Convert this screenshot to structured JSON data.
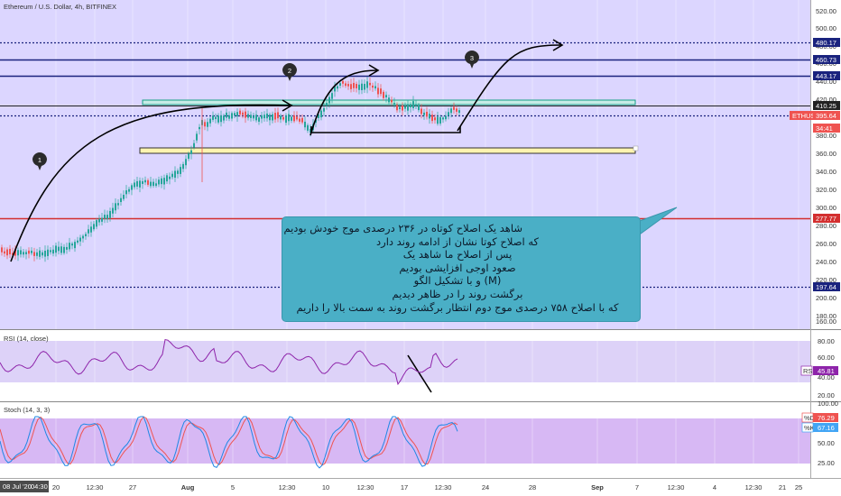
{
  "header": {
    "symbol_title": "Ethereum / U.S. Dollar, 4h, BITFINEX"
  },
  "price_axis": {
    "ticks": [
      "520.00",
      "500.00",
      "480.00",
      "460.00",
      "440.00",
      "420.00",
      "400.00",
      "380.00",
      "360.00",
      "340.00",
      "320.00",
      "300.00",
      "280.00",
      "260.00",
      "240.00",
      "220.00",
      "200.00",
      "180.00",
      "160.00"
    ],
    "tags": [
      {
        "text": "480.17",
        "color": "#1a237e"
      },
      {
        "text": "460.73",
        "color": "#1a237e"
      },
      {
        "text": "443.17",
        "color": "#1a237e"
      },
      {
        "text": "410.25",
        "color": "#222222"
      },
      {
        "text": "ETHUSD",
        "color": "#ef5350"
      },
      {
        "text": "395.64",
        "color": "#ef5350"
      },
      {
        "text": "34:41",
        "color": "#ef5350"
      },
      {
        "text": "277.77",
        "color": "#d32f2f"
      },
      {
        "text": "197.64",
        "color": "#1a237e"
      }
    ]
  },
  "rsi_pane": {
    "title": "RSI (14, close)",
    "ticks": [
      "80.00",
      "60.00",
      "40.00",
      "20.00"
    ],
    "tag_label": "RSI",
    "tag_value": "45.81"
  },
  "stoch_pane": {
    "title": "Stoch (14, 3, 3)",
    "ticks": [
      "100.00",
      "75.00",
      "50.00",
      "25.00"
    ],
    "tags": [
      {
        "label": "%D",
        "value": "76.29",
        "color": "#ef5350"
      },
      {
        "label": "%K",
        "value": "67.16",
        "color": "#42a5f5"
      }
    ]
  },
  "time_axis": {
    "current_date": "08 Jul '20",
    "current_time": "04:30",
    "labels": [
      "20",
      "12:30",
      "27",
      "Aug",
      "5",
      "12:30",
      "10",
      "12:30",
      "17",
      "12:30",
      "24",
      "28",
      "Sep",
      "7",
      "12:30",
      "4",
      "12:30",
      "21",
      "25"
    ]
  },
  "wave_markers": [
    "1",
    "2",
    "3"
  ],
  "annotation": {
    "lines": [
      "شاهد یک اصلاح کوتاه در ۲۳۶ درصدی موج خودش بودیم",
      "که اصلاح کوتا نشان از ادامه روند دارد",
      "پس از اصلاح ما شاهد یک",
      "صعود اوجی افزایشی بودیم",
      "(M) و با تشکیل الگو",
      "برگشت روند را  در ظاهر دیدیم",
      "که با اصلاح ۷۵۸ درصدی موج دوم انتظار  برگشت روند به سمت بالا را داریم"
    ]
  },
  "colors": {
    "main_bg": "#dcd6ff",
    "rsi_band": "#ddd2f8",
    "stoch_band": "#d7b8f4",
    "candle_up": "#26a69a",
    "candle_down": "#ef5350",
    "hline_blue": "#1a237e",
    "hline_red": "#d32f2f",
    "annotation_bg": "#4aafc6"
  }
}
